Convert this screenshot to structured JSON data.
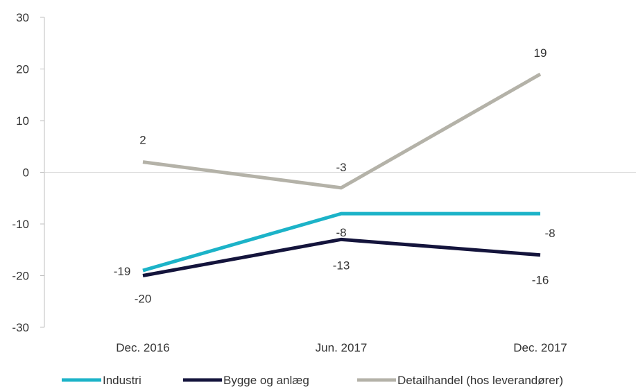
{
  "chart_data": {
    "type": "line",
    "title": "",
    "xlabel": "",
    "ylabel": "",
    "categories": [
      "Dec. 2016",
      "Jun. 2017",
      "Dec. 2017"
    ],
    "ylim": [
      -30,
      30
    ],
    "yticks": [
      -30,
      -20,
      -10,
      0,
      10,
      20,
      30
    ],
    "grid": false,
    "zero_line": true,
    "legend_position": "bottom",
    "series": [
      {
        "name": "Industri",
        "values": [
          -19,
          -8,
          -8
        ],
        "color": "#1cb3c8",
        "labels": [
          "-19",
          "-8",
          "-8"
        ]
      },
      {
        "name": "Bygge og anlæg",
        "values": [
          -20,
          -13,
          -16
        ],
        "color": "#14143c",
        "labels": [
          "-20",
          "-13",
          "-16"
        ]
      },
      {
        "name": "Detailhandel (hos leverandører)",
        "values": [
          2,
          -3,
          19
        ],
        "color": "#b4b2a8",
        "labels": [
          "2",
          "-3",
          "19"
        ]
      }
    ]
  }
}
